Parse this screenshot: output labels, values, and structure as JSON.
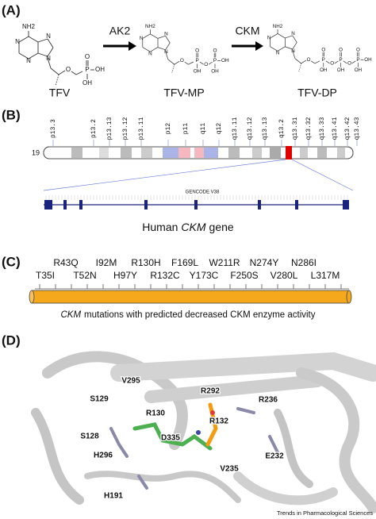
{
  "panel_a": {
    "label": "(A)",
    "molecules": [
      {
        "name": "TFV",
        "base": [
          "NH2",
          "N",
          "N",
          "N",
          "N",
          "O"
        ],
        "phosphates": [
          [
            "P",
            "O",
            "OH"
          ]
        ],
        "terminal": "OH"
      },
      {
        "name": "TFV-MP",
        "base": [
          "NH2",
          "N",
          "N",
          "N",
          "N",
          "O"
        ],
        "phosphates": [
          [
            "P",
            "O",
            "OH"
          ],
          [
            "P",
            "O",
            "OH"
          ]
        ],
        "bridges": [
          "O"
        ],
        "terminal": "OH"
      },
      {
        "name": "TFV-DP",
        "base": [
          "NH2",
          "N",
          "N",
          "N",
          "N",
          "O"
        ],
        "phosphates": [
          [
            "P",
            "O",
            "OH"
          ],
          [
            "P",
            "O",
            "OH"
          ],
          [
            "P",
            "O",
            "OH"
          ]
        ],
        "bridges": [
          "O",
          "O"
        ],
        "terminal": "OH"
      }
    ],
    "enzymes": [
      "AK2",
      "CKM"
    ]
  },
  "panel_b": {
    "label": "(B)",
    "chromosome": "19",
    "bands": [
      "p13.3",
      "p13.2",
      "p13.13",
      "p13.12",
      "p13.11",
      "p12",
      "p11",
      "q11",
      "q12",
      "q13.11",
      "q13.12",
      "q13.13",
      "q13.2",
      "q13.31",
      "q13.32",
      "q13.33",
      "q13.41",
      "q13.42",
      "q13.43"
    ],
    "track_label": "GENCODE V38",
    "caption": {
      "prefix": "Human",
      "gene": "CKM",
      "suffix": "gene"
    }
  },
  "panel_c": {
    "label": "(C)",
    "mutations_top": [
      {
        "label": "R43Q",
        "color": "#2e9a4e"
      },
      {
        "label": "I92M",
        "color": "#2e9a4e"
      },
      {
        "label": "R130H",
        "color": "#d32222"
      },
      {
        "label": "F169L",
        "color": "#2e9a4e"
      },
      {
        "label": "W211R",
        "color": "#d32222"
      },
      {
        "label": "N274Y",
        "color": "#111111"
      },
      {
        "label": "N286I",
        "color": "#d32222"
      }
    ],
    "mutations_bottom": [
      {
        "label": "T35I",
        "color": "#2e9a4e"
      },
      {
        "label": "T52N",
        "color": "#111111"
      },
      {
        "label": "H97Y",
        "color": "#2e9a4e"
      },
      {
        "label": "R132C",
        "color": "#d32222"
      },
      {
        "label": "Y173C",
        "color": "#2e9a4e"
      },
      {
        "label": "F250S",
        "color": "#111111"
      },
      {
        "label": "V280L",
        "color": "#111111"
      },
      {
        "label": "L317M",
        "color": "#111111"
      }
    ],
    "caption": {
      "gene": "CKM",
      "text": "mutations with predicted decreased CKM enzyme activity"
    }
  },
  "panel_d": {
    "label": "(D)",
    "residues": [
      "V295",
      "S129",
      "R292",
      "R132",
      "R236",
      "R130",
      "S128",
      "D335",
      "H296",
      "V235",
      "E232",
      "H191"
    ],
    "credit": "Trends in Pharmacological Sciences"
  }
}
